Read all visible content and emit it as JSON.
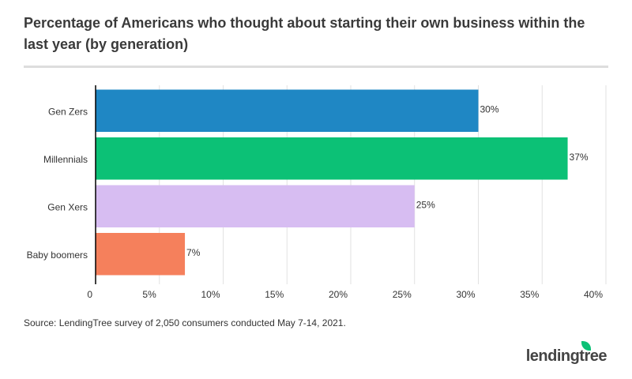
{
  "chart_data": {
    "type": "bar",
    "orientation": "horizontal",
    "title": "Percentage of Americans who thought about starting their own business within the last year (by generation)",
    "categories": [
      "Gen Zers",
      "Millennials",
      "Gen Xers",
      "Baby boomers"
    ],
    "values": [
      30,
      37,
      25,
      7
    ],
    "value_labels": [
      "30%",
      "37%",
      "25%",
      "7%"
    ],
    "colors": [
      "#1f87c4",
      "#0cc176",
      "#d7bdf2",
      "#f5805c"
    ],
    "xlim": [
      0,
      40
    ],
    "xticks": [
      0,
      {
        "value": 5,
        "label": "5%"
      },
      {
        "value": 10,
        "label": "10%"
      },
      {
        "value": 15,
        "label": "15%"
      },
      {
        "value": 20,
        "label": "20%"
      },
      {
        "value": 25,
        "label": "25%"
      },
      {
        "value": 30,
        "label": "30%"
      },
      {
        "value": 35,
        "label": "35%"
      },
      {
        "value": 40,
        "label": "40%"
      }
    ],
    "grid": true,
    "source": "Source: LendingTree survey of 2,050 consumers conducted May 7-14, 2021."
  },
  "logo": "lendingtree"
}
